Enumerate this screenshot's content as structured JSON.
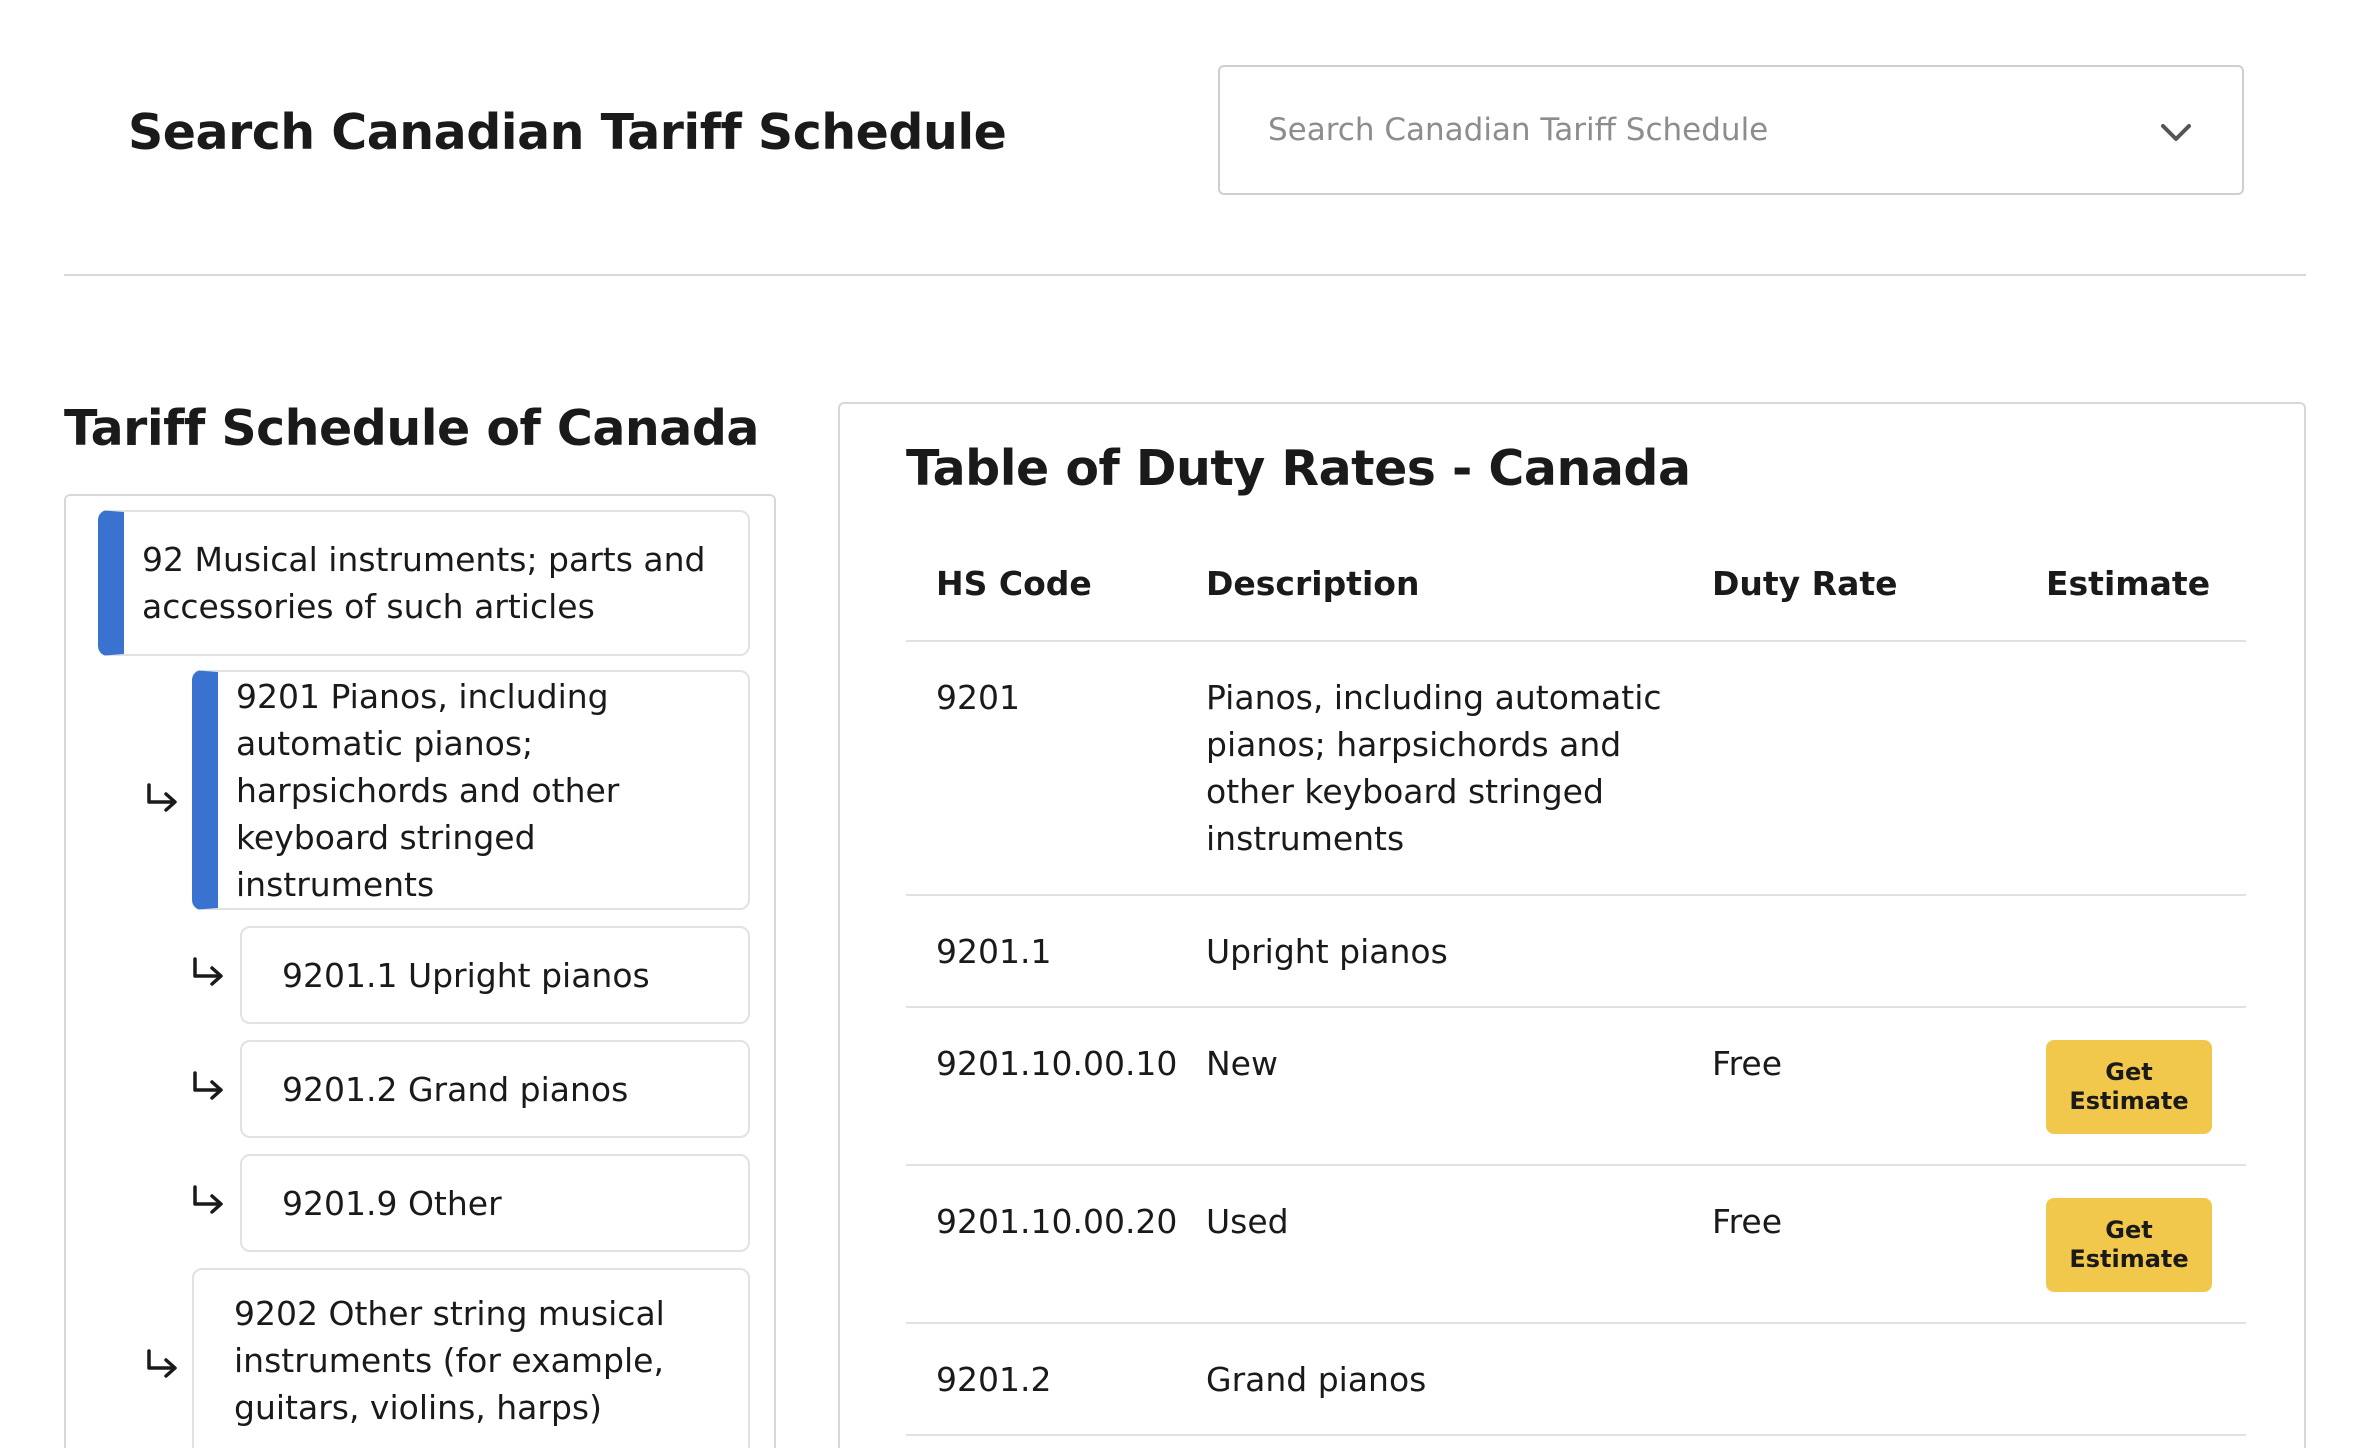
{
  "header": {
    "title": "Search Canadian Tariff Schedule",
    "search_placeholder": "Search Canadian Tariff Schedule",
    "search_value": ""
  },
  "tree": {
    "title": "Tariff Schedule of Canada",
    "nodes": [
      {
        "label": "92 Musical instruments; parts and accessories of such articles",
        "active": true
      },
      {
        "label": "9201 Pianos, including automatic pianos; harpsichords and other keyboard stringed instruments",
        "active": true
      },
      {
        "label": "9201.1 Upright pianos",
        "active": false
      },
      {
        "label": "9201.2 Grand pianos",
        "active": false
      },
      {
        "label": "9201.9 Other",
        "active": false
      },
      {
        "label": "9202 Other string musical instruments (for example, guitars, violins, harps)",
        "active": false
      }
    ]
  },
  "table": {
    "title": "Table of Duty Rates - Canada",
    "headers": {
      "hs_code": "HS Code",
      "description": "Description",
      "duty_rate": "Duty Rate",
      "estimate": "Estimate"
    },
    "rows": [
      {
        "hs_code": "9201",
        "description": "Pianos, including automatic pianos; harpsichords and other keyboard stringed instruments",
        "duty_rate": "",
        "estimate": ""
      },
      {
        "hs_code": "9201.1",
        "description": "Upright pianos",
        "duty_rate": "",
        "estimate": ""
      },
      {
        "hs_code": "9201.10.00.10",
        "description": "New",
        "duty_rate": "Free",
        "estimate": "Get Estimate"
      },
      {
        "hs_code": "9201.10.00.20",
        "description": "Used",
        "duty_rate": "Free",
        "estimate": "Get Estimate"
      },
      {
        "hs_code": "9201.2",
        "description": "Grand pianos",
        "duty_rate": "",
        "estimate": ""
      }
    ]
  },
  "colors": {
    "accent_blue": "#3a73cf",
    "button_yellow": "#f1c84b"
  },
  "icons": {
    "dropdown": "chevron-down-icon",
    "tree_child": "return-arrow-icon"
  }
}
